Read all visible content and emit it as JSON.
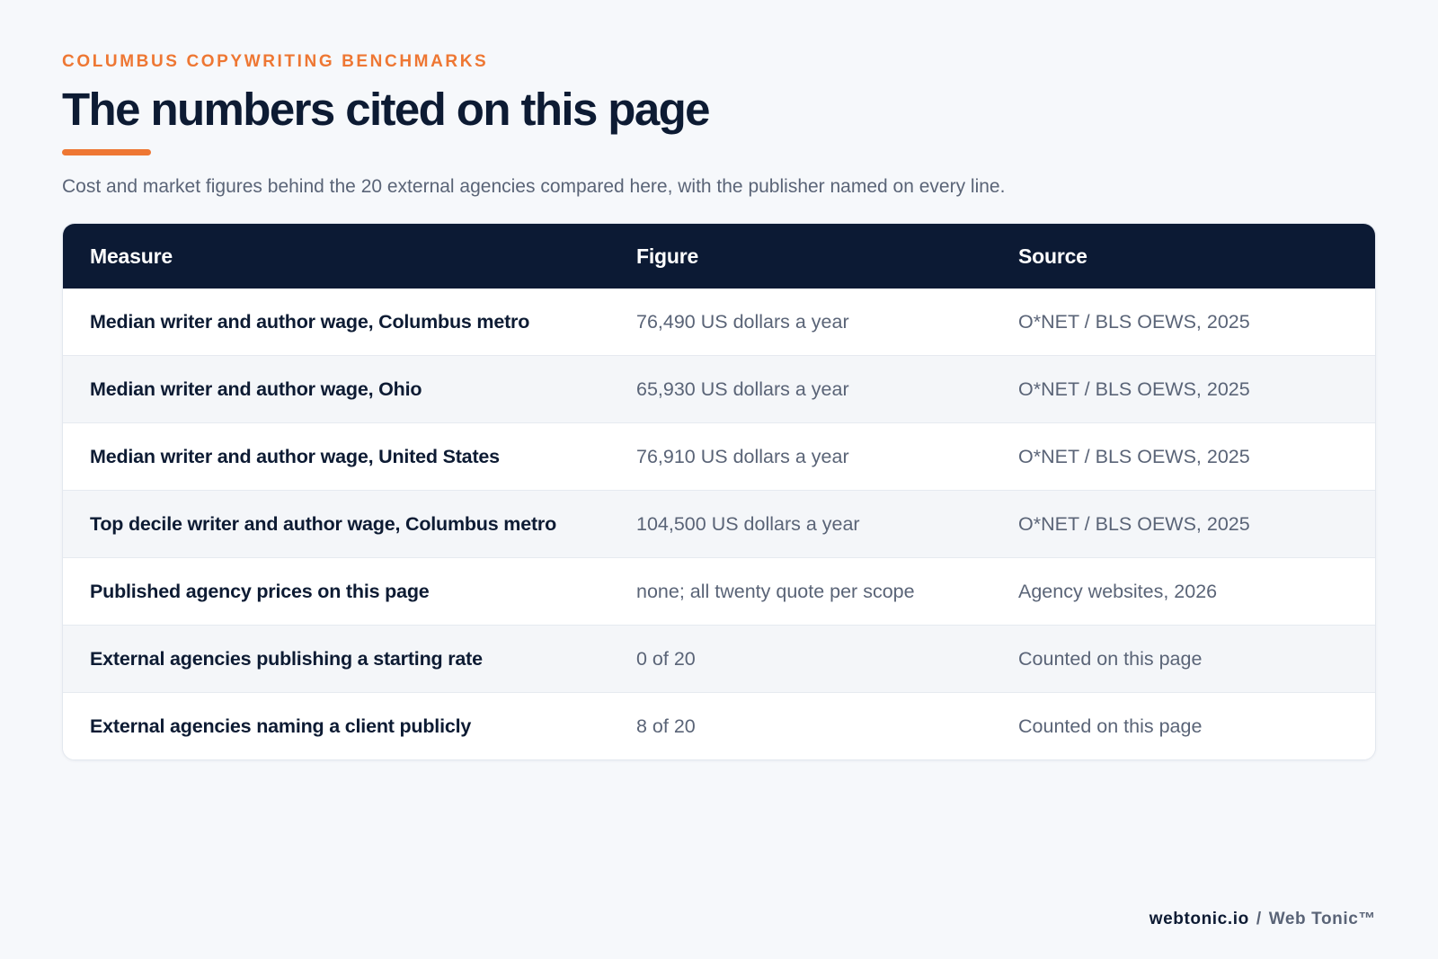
{
  "header": {
    "eyebrow": "COLUMBUS COPYWRITING BENCHMARKS",
    "title": "The numbers cited on this page",
    "lede": "Cost and market figures behind the 20 external agencies compared here, with the publisher named on every line."
  },
  "table": {
    "columns": [
      "Measure",
      "Figure",
      "Source"
    ],
    "rows": [
      {
        "measure": "Median writer and author wage, Columbus metro",
        "figure": "76,490 US dollars a year",
        "source": "O*NET / BLS OEWS, 2025"
      },
      {
        "measure": "Median writer and author wage, Ohio",
        "figure": "65,930 US dollars a year",
        "source": "O*NET / BLS OEWS, 2025"
      },
      {
        "measure": "Median writer and author wage, United States",
        "figure": "76,910 US dollars a year",
        "source": "O*NET / BLS OEWS, 2025"
      },
      {
        "measure": "Top decile writer and author wage, Columbus metro",
        "figure": "104,500 US dollars a year",
        "source": "O*NET / BLS OEWS, 2025"
      },
      {
        "measure": "Published agency prices on this page",
        "figure": "none; all twenty quote per scope",
        "source": "Agency websites, 2026"
      },
      {
        "measure": "External agencies publishing a starting rate",
        "figure": "0 of 20",
        "source": "Counted on this page"
      },
      {
        "measure": "External agencies naming a client publicly",
        "figure": "8 of 20",
        "source": "Counted on this page"
      }
    ]
  },
  "footer": {
    "domain": "webtonic.io",
    "separator": "/",
    "brand": "Web Tonic™"
  },
  "colors": {
    "accent": "#ee7733",
    "navy": "#0c1a34",
    "muted": "#5a6477",
    "background": "#f6f8fb"
  }
}
